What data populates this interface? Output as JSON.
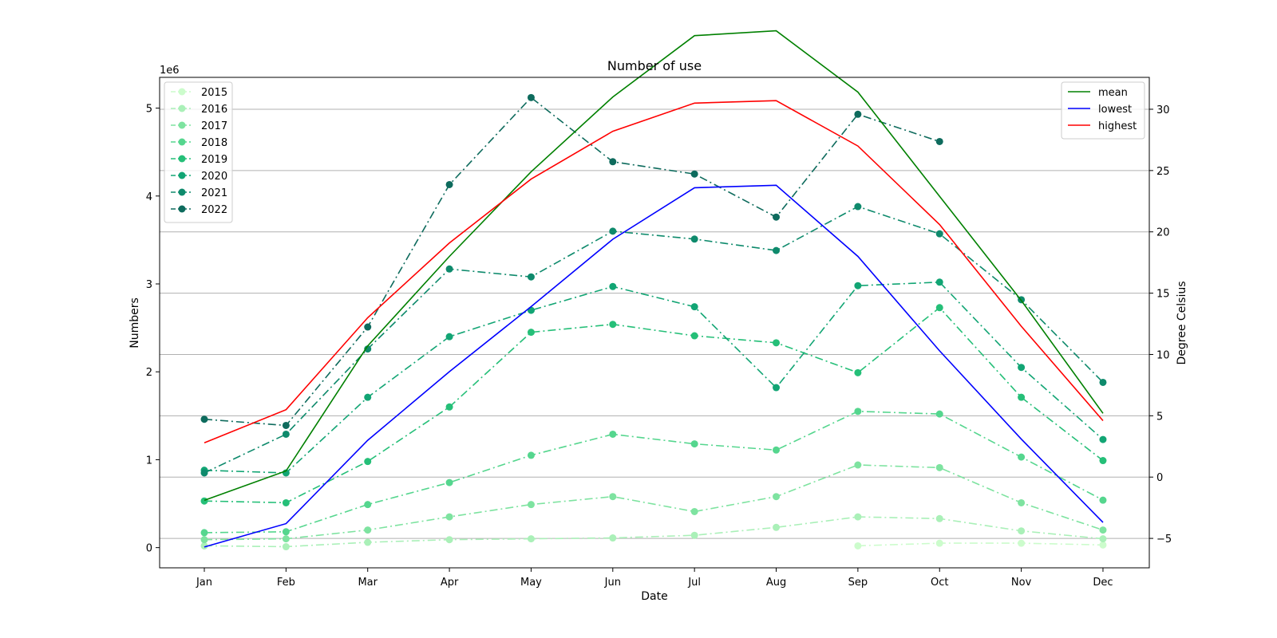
{
  "chart_data": {
    "type": "line",
    "title": "Number of use",
    "xlabel": "Date",
    "ylabel": "Numbers",
    "ylabel_right": "Degree Celsius",
    "y_offset_label": "1e6",
    "categories": [
      "Jan",
      "Feb",
      "Mar",
      "Apr",
      "May",
      "Jun",
      "Jul",
      "Aug",
      "Sep",
      "Oct",
      "Nov",
      "Dec"
    ],
    "ylim": [
      -0.23,
      5.35
    ],
    "yticks": [
      0,
      1,
      2,
      3,
      4,
      5
    ],
    "ylim_right": [
      -7.4,
      32.6
    ],
    "yticks_right": [
      -5,
      0,
      5,
      10,
      15,
      20,
      25,
      30
    ],
    "grid": "right-axis horizontal",
    "legend_left_position": "upper-left",
    "legend_right_position": "upper-right",
    "series": [
      {
        "name": "2015",
        "axis": "left",
        "style": "dash-dot",
        "marker": "circle",
        "color": "#ccfccc",
        "values": [
          null,
          null,
          null,
          null,
          null,
          null,
          null,
          null,
          0.02,
          0.05,
          0.05,
          0.03
        ]
      },
      {
        "name": "2016",
        "axis": "left",
        "style": "dash-dot",
        "marker": "circle",
        "color": "#aaf0b8",
        "values": [
          0.02,
          0.01,
          0.06,
          0.09,
          0.1,
          0.11,
          0.14,
          0.23,
          0.35,
          0.33,
          0.19,
          0.1
        ]
      },
      {
        "name": "2017",
        "axis": "left",
        "style": "dash-dot",
        "marker": "circle",
        "color": "#7ee3a0",
        "values": [
          0.09,
          0.1,
          0.2,
          0.35,
          0.49,
          0.58,
          0.41,
          0.58,
          0.94,
          0.91,
          0.51,
          0.2
        ]
      },
      {
        "name": "2018",
        "axis": "left",
        "style": "dash-dot",
        "marker": "circle",
        "color": "#55d68e",
        "values": [
          0.17,
          0.18,
          0.49,
          0.74,
          1.05,
          1.29,
          1.18,
          1.11,
          1.55,
          1.52,
          1.03,
          0.54
        ]
      },
      {
        "name": "2019",
        "axis": "left",
        "style": "dash-dot",
        "marker": "circle",
        "color": "#25bf78",
        "values": [
          0.53,
          0.51,
          0.98,
          1.6,
          2.45,
          2.54,
          2.41,
          2.33,
          1.99,
          2.73,
          1.71,
          0.99
        ]
      },
      {
        "name": "2020",
        "axis": "left",
        "style": "dash-dot",
        "marker": "circle",
        "color": "#12a574",
        "values": [
          0.88,
          0.85,
          1.71,
          2.4,
          2.7,
          2.97,
          2.74,
          1.82,
          2.98,
          3.02,
          2.05,
          1.23
        ]
      },
      {
        "name": "2021",
        "axis": "left",
        "style": "dash-dot",
        "marker": "circle",
        "color": "#0e8a6c",
        "values": [
          0.85,
          1.29,
          2.26,
          3.17,
          3.08,
          3.6,
          3.51,
          3.38,
          3.88,
          3.57,
          2.82,
          1.88
        ]
      },
      {
        "name": "2022",
        "axis": "left",
        "style": "dash-dot",
        "marker": "circle",
        "color": "#0e6b5d",
        "values": [
          1.46,
          1.39,
          2.51,
          4.13,
          5.12,
          4.39,
          4.25,
          3.76,
          4.93,
          4.62,
          null,
          null
        ]
      },
      {
        "name": "mean",
        "axis": "right",
        "style": "solid",
        "marker": "none",
        "color": "#008000",
        "values": [
          -1.9,
          0.5,
          10.7,
          18.0,
          24.9,
          31.0,
          36.0,
          36.4,
          31.4,
          22.9,
          14.4,
          5.2
        ]
      },
      {
        "name": "lowest",
        "axis": "right",
        "style": "solid",
        "marker": "none",
        "color": "#0000ff",
        "values": [
          -5.7,
          -3.8,
          3.0,
          8.6,
          13.9,
          19.4,
          23.6,
          23.8,
          18.0,
          10.3,
          3.1,
          -3.7
        ]
      },
      {
        "name": "highest",
        "axis": "right",
        "style": "solid",
        "marker": "none",
        "color": "#ff0000",
        "values": [
          2.8,
          5.5,
          13.0,
          19.1,
          24.3,
          28.2,
          30.5,
          30.7,
          27.0,
          20.6,
          12.3,
          4.6
        ]
      }
    ]
  }
}
